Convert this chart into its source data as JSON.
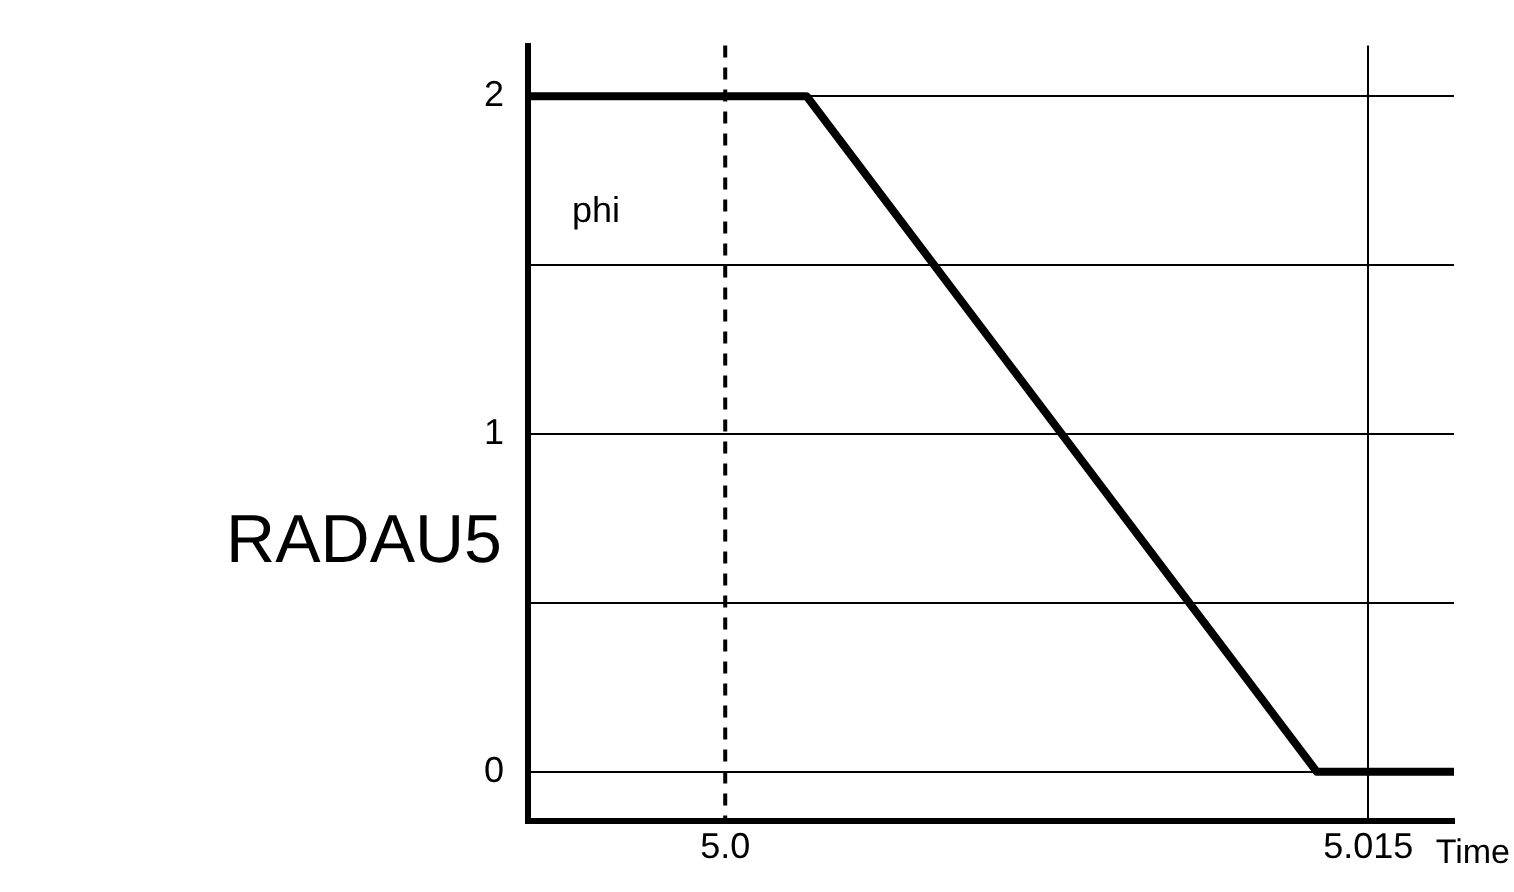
{
  "chart_data": {
    "type": "line",
    "title": "RADAU5",
    "xlabel": "Time",
    "x": [
      4.9954,
      5.0019,
      5.0138,
      5.017
    ],
    "series": [
      {
        "name": "phi",
        "color": "#000000",
        "values": [
          2,
          2,
          0,
          0
        ]
      }
    ],
    "xlim": [
      4.9954,
      5.017
    ],
    "xticks": [
      {
        "value": 5.0,
        "label": "5.0"
      },
      5.015
    ],
    "ylim": [
      -0.145,
      2.15
    ],
    "yticks": [
      0,
      {
        "value": 0.5,
        "label": null
      },
      1,
      {
        "value": 1.5,
        "label": null
      },
      2
    ],
    "grid": true,
    "legend": false,
    "marker": "none",
    "line_style": "solid",
    "ref_lines": [
      {
        "axis": "x",
        "value": 5.0,
        "line_style": "dashed",
        "color": "#000000"
      }
    ]
  }
}
